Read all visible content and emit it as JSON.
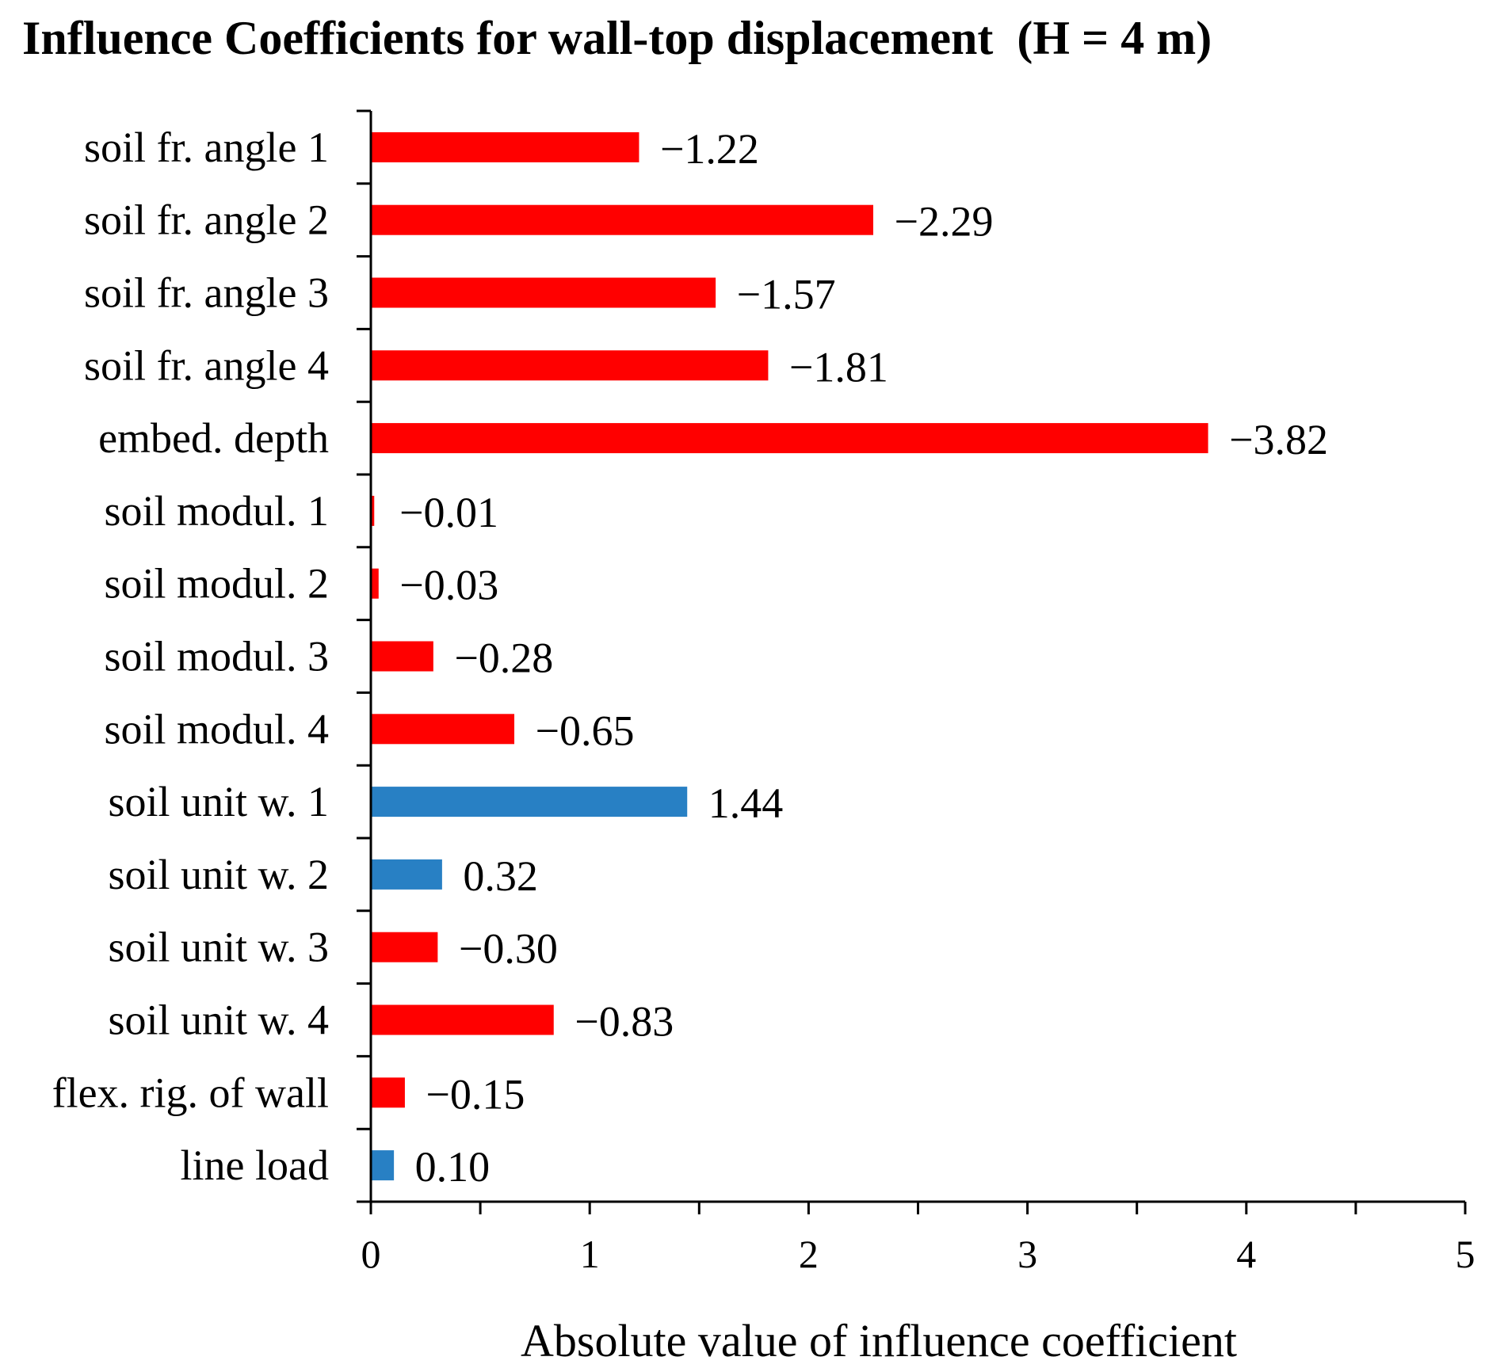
{
  "chart_data": {
    "type": "bar",
    "orientation": "horizontal",
    "title": "Influence Coefficients for wall-top displacement  (H = 4 m)",
    "xlabel": "Absolute value of influence coefficient",
    "ylabel": "",
    "xlim": [
      0,
      5
    ],
    "x_ticks": [
      "0",
      "1",
      "2",
      "3",
      "4",
      "5"
    ],
    "categories": [
      "soil fr. angle 1",
      "soil fr. angle 2",
      "soil fr. angle 3",
      "soil fr. angle 4",
      "embed. depth",
      "soil modul. 1",
      "soil modul. 2",
      "soil modul. 3",
      "soil modul. 4",
      "soil unit w. 1",
      "soil unit w. 2",
      "soil unit w. 3",
      "soil unit w. 4",
      "flex. rig. of wall",
      "line load"
    ],
    "values": [
      -1.22,
      -2.29,
      -1.57,
      -1.81,
      -3.82,
      -0.01,
      -0.03,
      -0.28,
      -0.65,
      1.44,
      0.32,
      -0.3,
      -0.83,
      -0.15,
      0.1
    ],
    "value_labels": [
      "−1.22",
      "−2.29",
      "−1.57",
      "−1.81",
      "−3.82",
      "−0.01",
      "−0.03",
      "−0.28",
      "−0.65",
      "1.44",
      "0.32",
      "−0.30",
      "−0.83",
      "−0.15",
      "0.10"
    ],
    "colors": {
      "negative": "#ff0000",
      "positive": "#2880c4"
    },
    "grid": false,
    "legend": "none"
  }
}
